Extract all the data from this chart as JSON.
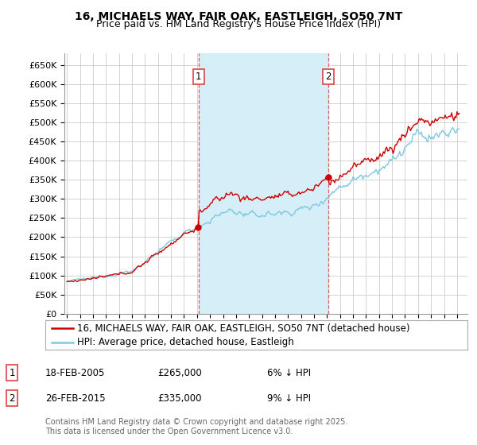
{
  "title": "16, MICHAELS WAY, FAIR OAK, EASTLEIGH, SO50 7NT",
  "subtitle": "Price paid vs. HM Land Registry's House Price Index (HPI)",
  "ylabel_ticks": [
    "£0",
    "£50K",
    "£100K",
    "£150K",
    "£200K",
    "£250K",
    "£300K",
    "£350K",
    "£400K",
    "£450K",
    "£500K",
    "£550K",
    "£600K",
    "£650K"
  ],
  "ytick_vals": [
    0,
    50000,
    100000,
    150000,
    200000,
    250000,
    300000,
    350000,
    400000,
    450000,
    500000,
    550000,
    600000,
    650000
  ],
  "ylim": [
    0,
    680000
  ],
  "xlim_start": 1994.8,
  "xlim_end": 2025.8,
  "hpi_color": "#7ec8e3",
  "hpi_fill_color": "#d6eef8",
  "price_color": "#cc0000",
  "transaction1_year": 2005.12,
  "transaction1_price": 265000,
  "transaction1_label": "1",
  "transaction2_year": 2015.12,
  "transaction2_price": 335000,
  "transaction2_label": "2",
  "vline_color": "#dd4444",
  "grid_color": "#cccccc",
  "background_color": "#ffffff",
  "legend_label_price": "16, MICHAELS WAY, FAIR OAK, EASTLEIGH, SO50 7NT (detached house)",
  "legend_label_hpi": "HPI: Average price, detached house, Eastleigh",
  "table_row1": [
    "1",
    "18-FEB-2005",
    "£265,000",
    "6% ↓ HPI"
  ],
  "table_row2": [
    "2",
    "26-FEB-2015",
    "£335,000",
    "9% ↓ HPI"
  ],
  "footnote": "Contains HM Land Registry data © Crown copyright and database right 2025.\nThis data is licensed under the Open Government Licence v3.0.",
  "title_fontsize": 10,
  "subtitle_fontsize": 9,
  "tick_fontsize": 8,
  "legend_fontsize": 8.5,
  "table_fontsize": 8.5,
  "footnote_fontsize": 7
}
